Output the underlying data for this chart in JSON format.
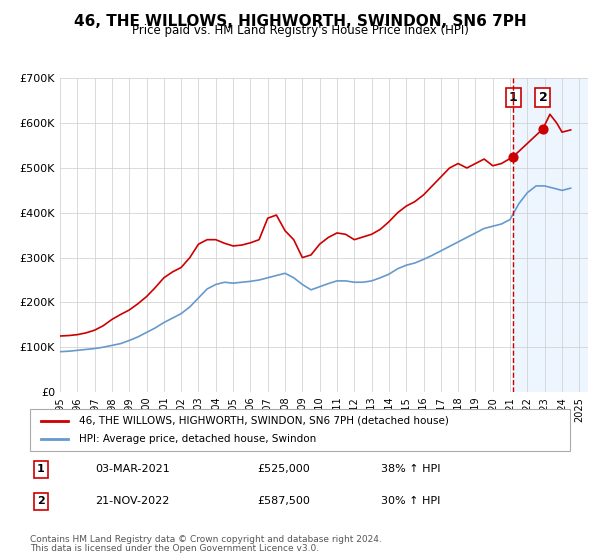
{
  "title": "46, THE WILLOWS, HIGHWORTH, SWINDON, SN6 7PH",
  "subtitle": "Price paid vs. HM Land Registry's House Price Index (HPI)",
  "legend_line1": "46, THE WILLOWS, HIGHWORTH, SWINDON, SN6 7PH (detached house)",
  "legend_line2": "HPI: Average price, detached house, Swindon",
  "footer_line1": "Contains HM Land Registry data © Crown copyright and database right 2024.",
  "footer_line2": "This data is licensed under the Open Government Licence v3.0.",
  "transaction1_label": "1",
  "transaction1_date": "03-MAR-2021",
  "transaction1_price": "£525,000",
  "transaction1_hpi": "38% ↑ HPI",
  "transaction2_label": "2",
  "transaction2_date": "21-NOV-2022",
  "transaction2_price": "£587,500",
  "transaction2_hpi": "30% ↑ HPI",
  "red_color": "#cc0000",
  "blue_color": "#6699cc",
  "dashed_red": "#cc0000",
  "highlight_fill": "#ddeeff",
  "grid_color": "#cccccc",
  "background_color": "#ffffff",
  "ylim": [
    0,
    700000
  ],
  "xlim_start": 1995.0,
  "xlim_end": 2025.5,
  "transaction1_x": 2021.17,
  "transaction2_x": 2022.9,
  "transaction1_y": 525000,
  "transaction2_y": 587500,
  "vertical_dashed_x": 2021.17,
  "hpi_series_x": [
    1995,
    1995.5,
    1996,
    1996.5,
    1997,
    1997.5,
    1998,
    1998.5,
    1999,
    1999.5,
    2000,
    2000.5,
    2001,
    2001.5,
    2002,
    2002.5,
    2003,
    2003.5,
    2004,
    2004.5,
    2005,
    2005.5,
    2006,
    2006.5,
    2007,
    2007.5,
    2008,
    2008.5,
    2009,
    2009.5,
    2010,
    2010.5,
    2011,
    2011.5,
    2012,
    2012.5,
    2013,
    2013.5,
    2014,
    2014.5,
    2015,
    2015.5,
    2016,
    2016.5,
    2017,
    2017.5,
    2018,
    2018.5,
    2019,
    2019.5,
    2020,
    2020.5,
    2021,
    2021.5,
    2022,
    2022.5,
    2023,
    2023.5,
    2024,
    2024.5
  ],
  "hpi_series_y": [
    90000,
    91000,
    93000,
    95000,
    97000,
    100000,
    104000,
    108000,
    115000,
    123000,
    133000,
    143000,
    155000,
    165000,
    175000,
    190000,
    210000,
    230000,
    240000,
    245000,
    243000,
    245000,
    247000,
    250000,
    255000,
    260000,
    265000,
    255000,
    240000,
    228000,
    235000,
    242000,
    248000,
    248000,
    245000,
    245000,
    248000,
    255000,
    263000,
    275000,
    283000,
    288000,
    296000,
    305000,
    315000,
    325000,
    335000,
    345000,
    355000,
    365000,
    370000,
    375000,
    385000,
    420000,
    445000,
    460000,
    460000,
    455000,
    450000,
    455000
  ],
  "red_series_x": [
    1995,
    1995.5,
    1996,
    1996.5,
    1997,
    1997.5,
    1998,
    1998.5,
    1999,
    1999.5,
    2000,
    2000.5,
    2001,
    2001.5,
    2002,
    2002.5,
    2003,
    2003.5,
    2004,
    2004.5,
    2005,
    2005.5,
    2006,
    2006.5,
    2007,
    2007.5,
    2008,
    2008.5,
    2009,
    2009.5,
    2010,
    2010.5,
    2011,
    2011.5,
    2012,
    2012.5,
    2013,
    2013.5,
    2014,
    2014.5,
    2015,
    2015.5,
    2016,
    2016.5,
    2017,
    2017.5,
    2018,
    2018.5,
    2019,
    2019.5,
    2020,
    2020.5,
    2021.17,
    2022.9,
    2023.3,
    2023.7,
    2024,
    2024.5
  ],
  "red_series_y": [
    125000,
    126000,
    128000,
    132000,
    138000,
    148000,
    162000,
    173000,
    183000,
    197000,
    213000,
    233000,
    255000,
    268000,
    278000,
    300000,
    330000,
    340000,
    340000,
    332000,
    326000,
    328000,
    333000,
    340000,
    388000,
    395000,
    360000,
    340000,
    300000,
    306000,
    330000,
    345000,
    355000,
    352000,
    340000,
    346000,
    352000,
    363000,
    380000,
    400000,
    415000,
    425000,
    440000,
    460000,
    480000,
    500000,
    510000,
    500000,
    510000,
    520000,
    505000,
    510000,
    525000,
    587500,
    620000,
    600000,
    580000,
    585000
  ]
}
